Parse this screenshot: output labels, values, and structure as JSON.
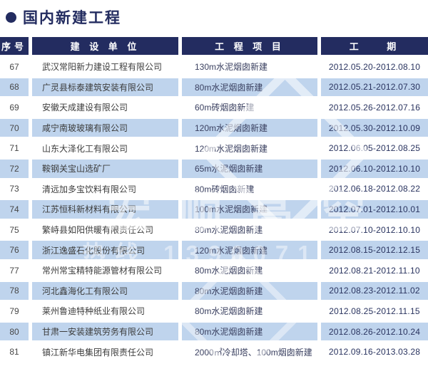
{
  "page": {
    "title": "国内新建工程"
  },
  "table": {
    "headers": [
      "序号",
      "建 设 单 位",
      "工 程 项 目",
      "工    期"
    ],
    "rows": [
      {
        "no": "67",
        "company": "武汉常阳新力建设工程有限公司",
        "project": "130m水泥烟囱新建",
        "period": "2012.05.20-2012.08.10"
      },
      {
        "no": "68",
        "company": "广灵县标泰建筑安装有限公司",
        "project": "80m水泥烟囱新建",
        "period": "2012.05.21-2012.07.30"
      },
      {
        "no": "69",
        "company": "安徽天成建设有限公司",
        "project": "60m砖烟囱新建",
        "period": "2012.05.26-2012.07.16"
      },
      {
        "no": "70",
        "company": "咸宁南玻玻璃有限公司",
        "project": "120m水泥烟囱新建",
        "period": "2012.05.30-2012.10.09"
      },
      {
        "no": "71",
        "company": "山东大泽化工有限公司",
        "project": "120m水泥烟囱新建",
        "period": "2012.06.05-2012.08.25"
      },
      {
        "no": "72",
        "company": "鞍钢关宝山选矿厂",
        "project": "65m水泥烟囱新建",
        "period": "2012.06.10-2012.10.10"
      },
      {
        "no": "73",
        "company": "清远加多宝饮料有限公司",
        "project": "80m砖烟囱新建",
        "period": "2012.06.18-2012.08.22"
      },
      {
        "no": "74",
        "company": "江苏恒科新材料有限公司",
        "project": "100m水泥烟囱新建",
        "period": "2012.07.01-2012.10.01"
      },
      {
        "no": "75",
        "company": "繁峙县如阳供暖有限责任公司",
        "project": "80m水泥烟囱新建",
        "period": "2012.07.10-2012.10.10"
      },
      {
        "no": "76",
        "company": "浙江逸盛石化股份有限公司",
        "project": "120m水泥烟囱新建",
        "period": "2012.08.15-2012.12.15"
      },
      {
        "no": "77",
        "company": "常州常宝精特能源管材有限公司",
        "project": "80m水泥烟囱新建",
        "period": "2012.08.21-2012.11.10"
      },
      {
        "no": "78",
        "company": "河北鑫海化工有限公司",
        "project": "80m水泥烟囱新建",
        "period": "2012.08.23-2012.11.02"
      },
      {
        "no": "79",
        "company": "莱州鲁迪特种纸业有限公司",
        "project": "80m水泥烟囱新建",
        "period": "2012.08.25-2012.11.15"
      },
      {
        "no": "80",
        "company": "甘肃一安装建筑劳务有限公司",
        "project": "80m水泥烟囱新建",
        "period": "2012.08.26-2012.10.24"
      },
      {
        "no": "81",
        "company": "镇江新华电集团有限责任公司",
        "project": "2000㎡冷却塔、100m烟囱新建",
        "period": "2012.09.16-2013.03.28"
      }
    ]
  },
  "watermark": {
    "logo_text": "宏顺高空",
    "hotline_text": "热线 1390071"
  },
  "colors": {
    "navy": "#232c60",
    "stripe_blue": "#bfd4ed",
    "date_text": "#29335f"
  }
}
